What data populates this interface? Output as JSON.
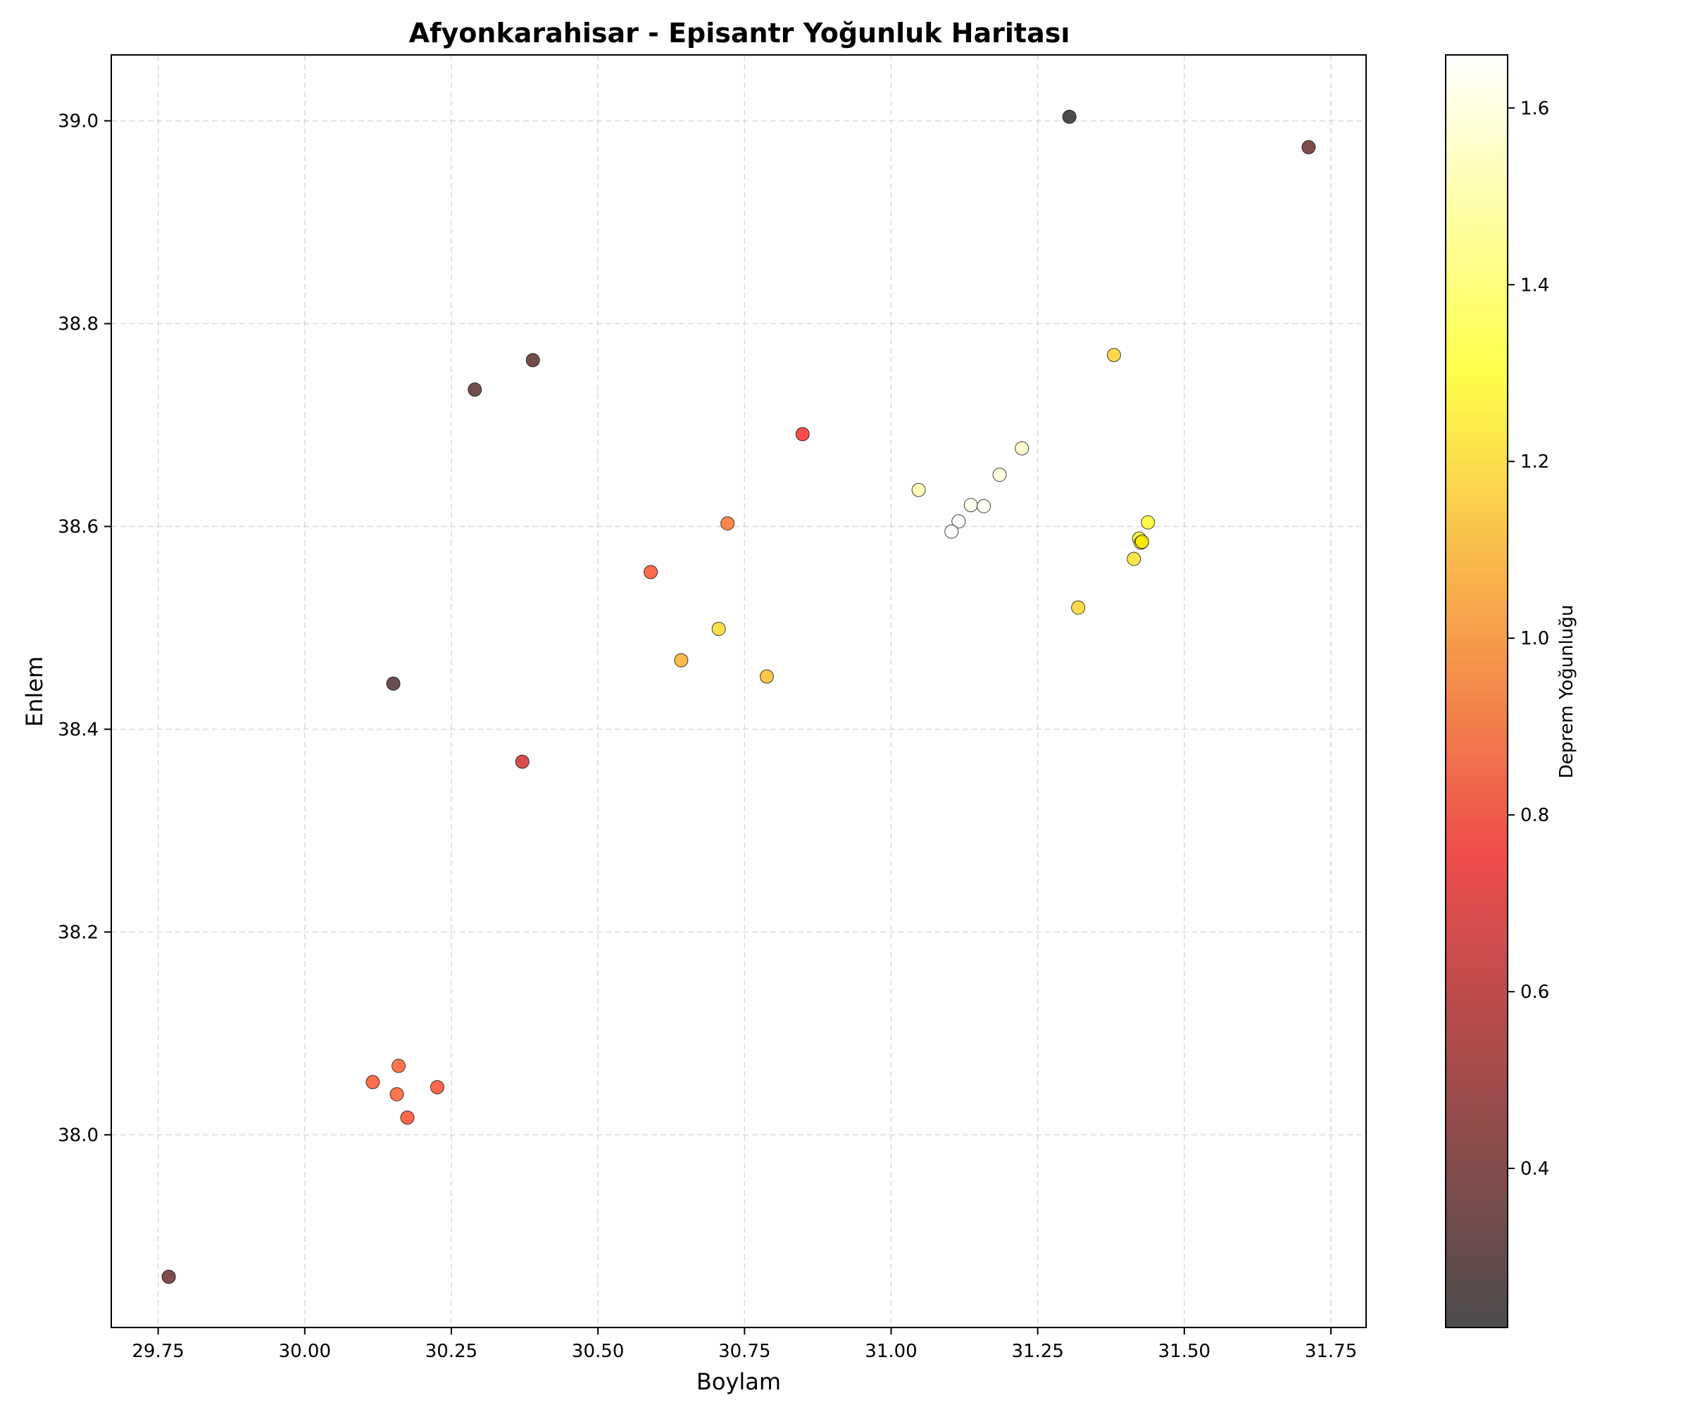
{
  "chart_data": {
    "type": "scatter",
    "title": "Afyonkarahisar - Episantr Yoğunluk Haritası",
    "xlabel": "Boylam",
    "ylabel": "Enlem",
    "xlim": [
      29.67,
      31.81
    ],
    "ylim": [
      37.81,
      39.065
    ],
    "xticks": [
      29.75,
      30.0,
      30.25,
      30.5,
      30.75,
      31.0,
      31.25,
      31.5,
      31.75
    ],
    "xtick_labels": [
      "29.75",
      "30.00",
      "30.25",
      "30.50",
      "30.75",
      "31.00",
      "31.25",
      "31.50",
      "31.75"
    ],
    "yticks": [
      38.0,
      38.2,
      38.4,
      38.6,
      38.8,
      39.0
    ],
    "ytick_labels": [
      "38.0",
      "38.2",
      "38.4",
      "38.6",
      "38.8",
      "39.0"
    ],
    "grid": true,
    "colormap": "hot",
    "colorbar": {
      "label": "Deprem Yoğunluğu",
      "range": [
        0.22,
        1.66
      ],
      "ticks": [
        0.4,
        0.6,
        0.8,
        1.0,
        1.2,
        1.4,
        1.6
      ],
      "tick_labels": [
        "0.4",
        "0.6",
        "0.8",
        "1.0",
        "1.2",
        "1.4",
        "1.6"
      ]
    },
    "points": [
      {
        "x": 31.304,
        "y": 39.004,
        "value": 0.23
      },
      {
        "x": 31.712,
        "y": 38.974,
        "value": 0.37
      },
      {
        "x": 30.389,
        "y": 38.764,
        "value": 0.34
      },
      {
        "x": 30.29,
        "y": 38.735,
        "value": 0.34
      },
      {
        "x": 30.849,
        "y": 38.691,
        "value": 0.72
      },
      {
        "x": 31.38,
        "y": 38.769,
        "value": 1.17
      },
      {
        "x": 30.721,
        "y": 38.603,
        "value": 0.93
      },
      {
        "x": 30.59,
        "y": 38.555,
        "value": 0.84
      },
      {
        "x": 31.047,
        "y": 38.636,
        "value": 1.52
      },
      {
        "x": 31.223,
        "y": 38.677,
        "value": 1.56
      },
      {
        "x": 31.185,
        "y": 38.651,
        "value": 1.6
      },
      {
        "x": 31.136,
        "y": 38.621,
        "value": 1.63
      },
      {
        "x": 31.158,
        "y": 38.62,
        "value": 1.64
      },
      {
        "x": 31.115,
        "y": 38.605,
        "value": 1.65
      },
      {
        "x": 31.103,
        "y": 38.595,
        "value": 1.66
      },
      {
        "x": 31.438,
        "y": 38.604,
        "value": 1.28
      },
      {
        "x": 31.423,
        "y": 38.588,
        "value": 1.26
      },
      {
        "x": 31.426,
        "y": 38.584,
        "value": 1.27
      },
      {
        "x": 31.428,
        "y": 38.585,
        "value": 1.25
      },
      {
        "x": 31.414,
        "y": 38.568,
        "value": 1.21
      },
      {
        "x": 31.319,
        "y": 38.52,
        "value": 1.18
      },
      {
        "x": 30.706,
        "y": 38.499,
        "value": 1.2
      },
      {
        "x": 30.642,
        "y": 38.468,
        "value": 1.08
      },
      {
        "x": 30.788,
        "y": 38.452,
        "value": 1.12
      },
      {
        "x": 30.151,
        "y": 38.445,
        "value": 0.31
      },
      {
        "x": 30.371,
        "y": 38.368,
        "value": 0.63
      },
      {
        "x": 30.16,
        "y": 38.068,
        "value": 0.87
      },
      {
        "x": 30.116,
        "y": 38.052,
        "value": 0.85
      },
      {
        "x": 30.226,
        "y": 38.047,
        "value": 0.84
      },
      {
        "x": 30.157,
        "y": 38.04,
        "value": 0.88
      },
      {
        "x": 30.175,
        "y": 38.017,
        "value": 0.83
      },
      {
        "x": 29.768,
        "y": 37.86,
        "value": 0.38
      }
    ]
  }
}
